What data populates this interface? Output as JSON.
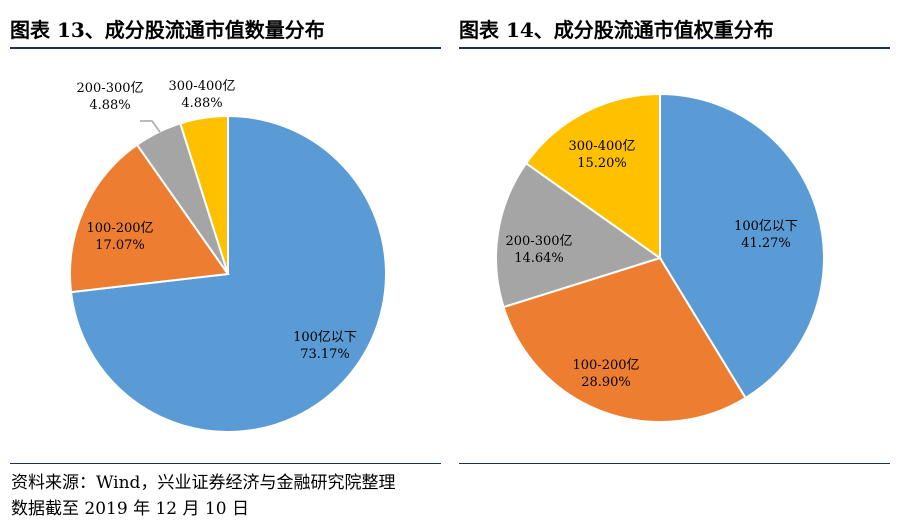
{
  "footer": {
    "source": "资料来源：Wind，兴业证券经济与金融研究院整理",
    "date": "数据截至 2019 年 12 月 10 日"
  },
  "chart_data": [
    {
      "type": "pie",
      "title": "图表 13、成分股流通市值数量分布",
      "categories": [
        "100亿以下",
        "100-200亿",
        "200-300亿",
        "300-400亿"
      ],
      "labels": [
        "100亿以下",
        "100-200亿",
        "200-300亿",
        "300-400亿"
      ],
      "values": [
        73.17,
        17.07,
        4.88,
        4.88
      ],
      "value_labels": [
        "73.17%",
        "17.07%",
        "4.88%",
        "4.88%"
      ],
      "colors": [
        "#5b9bd5",
        "#ed7d31",
        "#a5a5a5",
        "#ffc000"
      ]
    },
    {
      "type": "pie",
      "title": "图表 14、成分股流通市值权重分布",
      "categories": [
        "100亿以下",
        "100-200亿",
        "200-300亿",
        "300-400亿"
      ],
      "labels": [
        "100亿以下",
        "100-200亿",
        "200-300亿",
        "300-400亿"
      ],
      "values": [
        41.27,
        28.9,
        14.64,
        15.2
      ],
      "value_labels": [
        "41.27%",
        "28.90%",
        "14.64%",
        "15.20%"
      ],
      "colors": [
        "#5b9bd5",
        "#ed7d31",
        "#a5a5a5",
        "#ffc000"
      ]
    }
  ]
}
